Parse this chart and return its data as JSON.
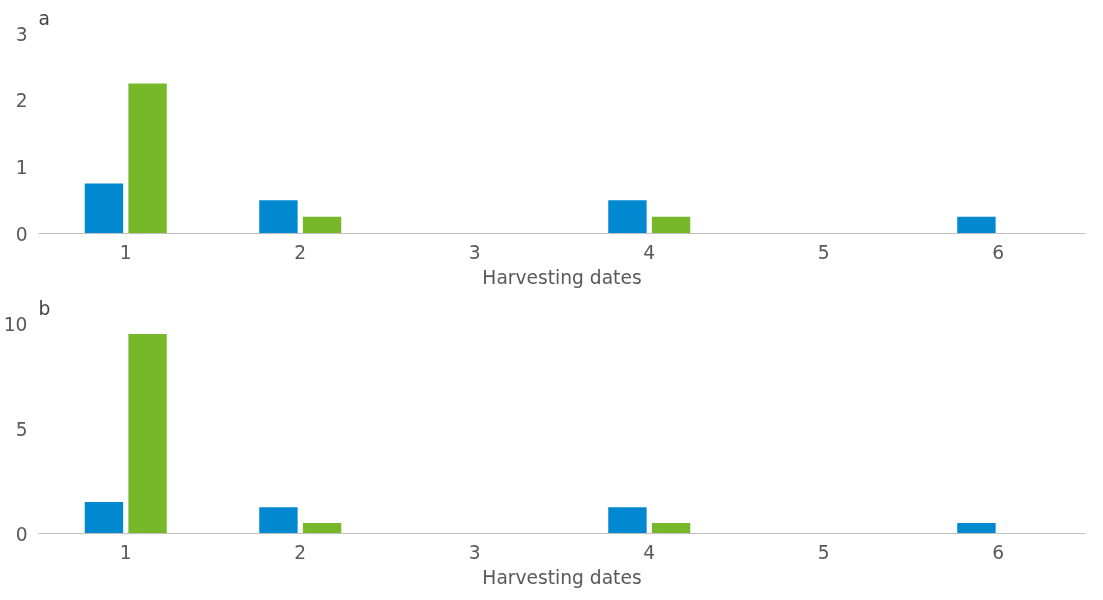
{
  "chart_data": [
    {
      "type": "bar",
      "title": "a",
      "xlabel": "Harvesting dates",
      "categories": [
        "1",
        "2",
        "3",
        "4",
        "5",
        "6"
      ],
      "ylim": [
        0,
        3
      ],
      "yticks": [
        0,
        1,
        2,
        3
      ],
      "grid": false,
      "series": [
        {
          "color": "#0088d1",
          "values": [
            0.75,
            0.5,
            0,
            0.5,
            0,
            0.25
          ]
        },
        {
          "color": "#76b82a",
          "values": [
            2.25,
            0.25,
            0,
            0.25,
            0,
            0
          ]
        }
      ]
    },
    {
      "type": "bar",
      "title": "b",
      "xlabel": "Harvesting dates",
      "categories": [
        "1",
        "2",
        "3",
        "4",
        "5",
        "6"
      ],
      "ylim": [
        0,
        10
      ],
      "yticks": [
        0,
        5,
        10
      ],
      "grid": false,
      "series": [
        {
          "color": "#0088d1",
          "values": [
            1.5,
            1.25,
            0,
            1.25,
            0,
            0.5
          ]
        },
        {
          "color": "#76b82a",
          "values": [
            9.5,
            0.5,
            0,
            0.5,
            0,
            0
          ]
        }
      ]
    }
  ]
}
